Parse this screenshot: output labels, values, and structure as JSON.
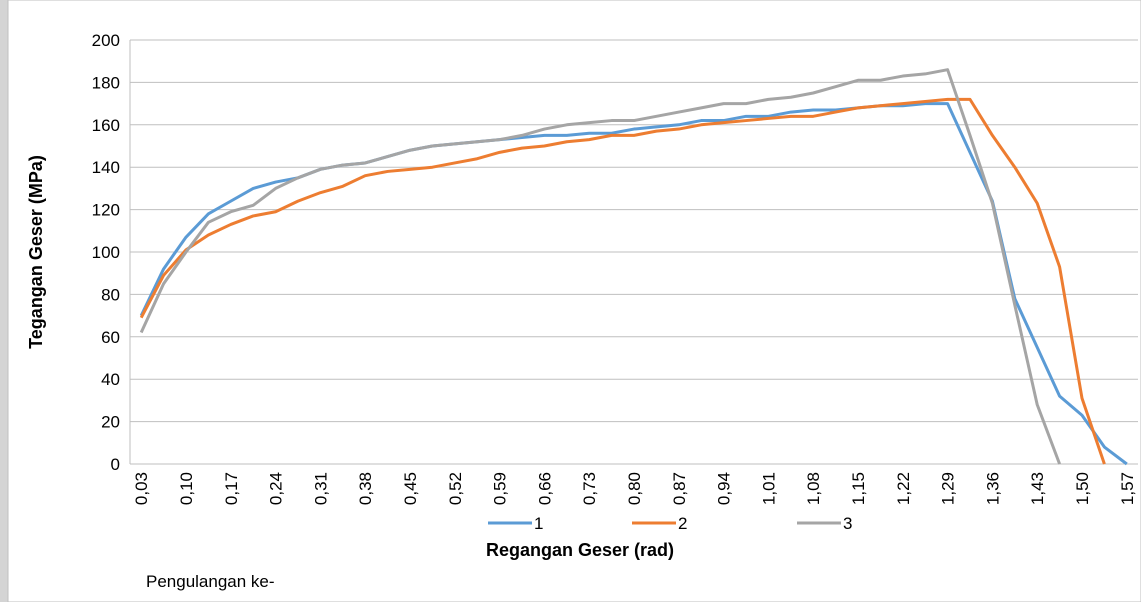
{
  "chart_data": {
    "type": "line",
    "xlabel": "Regangan Geser (rad)",
    "ylabel": "Tegangan Geser (MPa)",
    "legend_title": "Pengulangan ke-",
    "categories": [
      "0,03",
      null,
      "0,10",
      null,
      "0,17",
      null,
      "0,24",
      null,
      "0,31",
      null,
      "0,38",
      null,
      "0,45",
      null,
      "0,52",
      null,
      "0,59",
      null,
      "0,66",
      null,
      "0,73",
      null,
      "0,80",
      null,
      "0,87",
      null,
      "0,94",
      null,
      "1,01",
      null,
      "1,08",
      null,
      "1,15",
      null,
      "1,22",
      null,
      "1,29",
      null,
      "1,36",
      null,
      "1,43",
      null,
      "1,50",
      null,
      "1,57"
    ],
    "series": [
      {
        "name": "1",
        "color": "#5b9bd5",
        "values": [
          70,
          92,
          107,
          118,
          124,
          130,
          133,
          135,
          139,
          141,
          142,
          145,
          148,
          150,
          151,
          152,
          153,
          154,
          155,
          155,
          156,
          156,
          158,
          159,
          160,
          162,
          162,
          164,
          164,
          166,
          167,
          167,
          168,
          169,
          169,
          170,
          170,
          147,
          124,
          78,
          55,
          32,
          23,
          8,
          0
        ]
      },
      {
        "name": "2",
        "color": "#ed7d31",
        "values": [
          69,
          89,
          101,
          108,
          113,
          117,
          119,
          124,
          128,
          131,
          136,
          138,
          139,
          140,
          142,
          144,
          147,
          149,
          150,
          152,
          153,
          155,
          155,
          157,
          158,
          160,
          161,
          162,
          163,
          164,
          164,
          166,
          168,
          169,
          170,
          171,
          172,
          172,
          155,
          140,
          123,
          93,
          31,
          0,
          null
        ]
      },
      {
        "name": "3",
        "color": "#a5a5a5",
        "values": [
          62,
          85,
          100,
          114,
          119,
          122,
          130,
          135,
          139,
          141,
          142,
          145,
          148,
          150,
          151,
          152,
          153,
          155,
          158,
          160,
          161,
          162,
          162,
          164,
          166,
          168,
          170,
          170,
          172,
          173,
          175,
          178,
          181,
          181,
          183,
          184,
          186,
          155,
          123,
          75,
          28,
          0,
          null,
          null,
          null
        ]
      }
    ],
    "ylim": [
      0,
      200
    ],
    "yticks": [
      0,
      20,
      40,
      60,
      80,
      100,
      120,
      140,
      160,
      180,
      200
    ],
    "grid": true
  }
}
